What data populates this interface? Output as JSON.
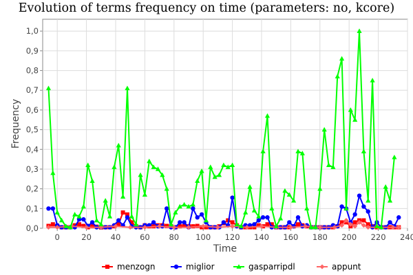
{
  "chart_data": {
    "type": "line",
    "title": "Evolution of terms frequency on time (parameters: no, kcore)",
    "xlabel": "Time",
    "ylabel": "Frequency",
    "xlim": [
      -10,
      240
    ],
    "ylim": [
      0,
      1.06
    ],
    "xticks": [
      "0",
      "20",
      "40",
      "60",
      "80",
      "100",
      "120",
      "140",
      "160",
      "180",
      "200",
      "220",
      "240"
    ],
    "yticks": [
      "0,0",
      "0,1",
      "0,2",
      "0,3",
      "0,4",
      "0,5",
      "0,6",
      "0,7",
      "0,8",
      "0,9",
      "1,0"
    ],
    "grid": true,
    "legend_position": "bottom",
    "series": [
      {
        "name": "menzogn",
        "color": "#ff0000",
        "marker": "square",
        "points": [
          [
            -6,
            0.012
          ],
          [
            -3,
            0.02
          ],
          [
            0,
            0.012
          ],
          [
            3,
            0.005
          ],
          [
            6,
            0.005
          ],
          [
            9,
            0.005
          ],
          [
            12,
            0.015
          ],
          [
            15,
            0.02
          ],
          [
            18,
            0.012
          ],
          [
            21,
            0.005
          ],
          [
            24,
            0.01
          ],
          [
            27,
            0.008
          ],
          [
            30,
            0.004
          ],
          [
            33,
            0.005
          ],
          [
            36,
            0.005
          ],
          [
            39,
            0.01
          ],
          [
            42,
            0.02
          ],
          [
            45,
            0.08
          ],
          [
            48,
            0.07
          ],
          [
            51,
            0.03
          ],
          [
            54,
            0.01
          ],
          [
            57,
            0.005
          ],
          [
            60,
            0.015
          ],
          [
            63,
            0.01
          ],
          [
            66,
            0.01
          ],
          [
            69,
            0.015
          ],
          [
            72,
            0.015
          ],
          [
            75,
            0.012
          ],
          [
            78,
            0.01
          ],
          [
            81,
            0.005
          ],
          [
            84,
            0.01
          ],
          [
            87,
            0.012
          ],
          [
            90,
            0.01
          ],
          [
            93,
            0.01
          ],
          [
            96,
            0.012
          ],
          [
            99,
            0.005
          ],
          [
            102,
            0.005
          ],
          [
            105,
            0.005
          ],
          [
            108,
            0.005
          ],
          [
            111,
            0.01
          ],
          [
            114,
            0.025
          ],
          [
            117,
            0.04
          ],
          [
            120,
            0.03
          ],
          [
            123,
            0.015
          ],
          [
            126,
            0.005
          ],
          [
            129,
            0.005
          ],
          [
            132,
            0.005
          ],
          [
            135,
            0.005
          ],
          [
            138,
            0.015
          ],
          [
            141,
            0.01
          ],
          [
            144,
            0.02
          ],
          [
            147,
            0.02
          ],
          [
            150,
            0.005
          ],
          [
            153,
            0.005
          ],
          [
            156,
            0.005
          ],
          [
            159,
            0.005
          ],
          [
            162,
            0.01
          ],
          [
            165,
            0.02
          ],
          [
            168,
            0.015
          ],
          [
            171,
            0.01
          ],
          [
            174,
            0.005
          ],
          [
            177,
            0.005
          ],
          [
            180,
            0.005
          ],
          [
            183,
            0.005
          ],
          [
            186,
            0.005
          ],
          [
            189,
            0.005
          ],
          [
            192,
            0.01
          ],
          [
            195,
            0.03
          ],
          [
            198,
            0.03
          ],
          [
            201,
            0.01
          ],
          [
            204,
            0.03
          ],
          [
            207,
            0.04
          ],
          [
            210,
            0.04
          ],
          [
            213,
            0.02
          ],
          [
            216,
            0.01
          ],
          [
            219,
            0.005
          ],
          [
            222,
            0.005
          ],
          [
            225,
            0.005
          ],
          [
            228,
            0.005
          ],
          [
            231,
            0.005
          ],
          [
            234,
            0.005
          ]
        ]
      },
      {
        "name": "miglior",
        "color": "#0000ff",
        "marker": "circle",
        "points": [
          [
            -6,
            0.1
          ],
          [
            -3,
            0.1
          ],
          [
            0,
            0.015
          ],
          [
            3,
            0.005
          ],
          [
            6,
            0.005
          ],
          [
            9,
            0.005
          ],
          [
            12,
            0.005
          ],
          [
            15,
            0.045
          ],
          [
            18,
            0.045
          ],
          [
            21,
            0.012
          ],
          [
            24,
            0.03
          ],
          [
            27,
            0.005
          ],
          [
            30,
            0.005
          ],
          [
            33,
            0.005
          ],
          [
            36,
            0.005
          ],
          [
            39,
            0.015
          ],
          [
            42,
            0.04
          ],
          [
            45,
            0.015
          ],
          [
            48,
            0.055
          ],
          [
            51,
            0.01
          ],
          [
            54,
            0.005
          ],
          [
            57,
            0.005
          ],
          [
            60,
            0.015
          ],
          [
            63,
            0.015
          ],
          [
            66,
            0.03
          ],
          [
            69,
            0.01
          ],
          [
            72,
            0.01
          ],
          [
            75,
            0.1
          ],
          [
            78,
            0.005
          ],
          [
            81,
            0.005
          ],
          [
            84,
            0.03
          ],
          [
            87,
            0.03
          ],
          [
            90,
            0.005
          ],
          [
            93,
            0.1
          ],
          [
            96,
            0.055
          ],
          [
            99,
            0.07
          ],
          [
            102,
            0.03
          ],
          [
            105,
            0.005
          ],
          [
            108,
            0.005
          ],
          [
            111,
            0.005
          ],
          [
            114,
            0.03
          ],
          [
            117,
            0.015
          ],
          [
            120,
            0.155
          ],
          [
            123,
            0.01
          ],
          [
            126,
            0.005
          ],
          [
            129,
            0.015
          ],
          [
            132,
            0.015
          ],
          [
            135,
            0.02
          ],
          [
            138,
            0.04
          ],
          [
            141,
            0.055
          ],
          [
            144,
            0.055
          ],
          [
            147,
            0.005
          ],
          [
            150,
            0.005
          ],
          [
            153,
            0.005
          ],
          [
            156,
            0.005
          ],
          [
            159,
            0.03
          ],
          [
            162,
            0.01
          ],
          [
            165,
            0.055
          ],
          [
            168,
            0.01
          ],
          [
            171,
            0.015
          ],
          [
            174,
            0.005
          ],
          [
            177,
            0.005
          ],
          [
            180,
            0.005
          ],
          [
            183,
            0.005
          ],
          [
            186,
            0.005
          ],
          [
            189,
            0.015
          ],
          [
            192,
            0.01
          ],
          [
            195,
            0.11
          ],
          [
            198,
            0.1
          ],
          [
            201,
            0.03
          ],
          [
            204,
            0.07
          ],
          [
            207,
            0.165
          ],
          [
            210,
            0.11
          ],
          [
            213,
            0.085
          ],
          [
            216,
            0.005
          ],
          [
            219,
            0.03
          ],
          [
            222,
            0.005
          ],
          [
            225,
            0.005
          ],
          [
            228,
            0.03
          ],
          [
            231,
            0.01
          ],
          [
            234,
            0.055
          ]
        ]
      },
      {
        "name": "gasparripdl",
        "color": "#00ff00",
        "marker": "triangle",
        "points": [
          [
            -6,
            0.71
          ],
          [
            -3,
            0.28
          ],
          [
            0,
            0.08
          ],
          [
            3,
            0.04
          ],
          [
            6,
            0.01
          ],
          [
            9,
            0.005
          ],
          [
            12,
            0.07
          ],
          [
            15,
            0.06
          ],
          [
            18,
            0.11
          ],
          [
            21,
            0.32
          ],
          [
            24,
            0.24
          ],
          [
            27,
            0.04
          ],
          [
            30,
            0.02
          ],
          [
            33,
            0.14
          ],
          [
            36,
            0.06
          ],
          [
            39,
            0.31
          ],
          [
            42,
            0.42
          ],
          [
            45,
            0.16
          ],
          [
            48,
            0.71
          ],
          [
            51,
            0.06
          ],
          [
            54,
            0.02
          ],
          [
            57,
            0.27
          ],
          [
            60,
            0.17
          ],
          [
            63,
            0.34
          ],
          [
            66,
            0.31
          ],
          [
            69,
            0.3
          ],
          [
            72,
            0.27
          ],
          [
            75,
            0.2
          ],
          [
            78,
            0.02
          ],
          [
            81,
            0.08
          ],
          [
            84,
            0.11
          ],
          [
            87,
            0.12
          ],
          [
            90,
            0.11
          ],
          [
            93,
            0.12
          ],
          [
            96,
            0.24
          ],
          [
            99,
            0.29
          ],
          [
            102,
            0.04
          ],
          [
            105,
            0.31
          ],
          [
            108,
            0.26
          ],
          [
            111,
            0.27
          ],
          [
            114,
            0.32
          ],
          [
            117,
            0.31
          ],
          [
            120,
            0.32
          ],
          [
            123,
            0.02
          ],
          [
            126,
            0.01
          ],
          [
            129,
            0.08
          ],
          [
            132,
            0.21
          ],
          [
            135,
            0.09
          ],
          [
            138,
            0.06
          ],
          [
            141,
            0.39
          ],
          [
            144,
            0.57
          ],
          [
            147,
            0.1
          ],
          [
            150,
            0.01
          ],
          [
            153,
            0.05
          ],
          [
            156,
            0.19
          ],
          [
            159,
            0.17
          ],
          [
            162,
            0.14
          ],
          [
            165,
            0.39
          ],
          [
            168,
            0.38
          ],
          [
            171,
            0.1
          ],
          [
            174,
            0.005
          ],
          [
            177,
            0.005
          ],
          [
            180,
            0.2
          ],
          [
            183,
            0.5
          ],
          [
            186,
            0.32
          ],
          [
            189,
            0.31
          ],
          [
            192,
            0.77
          ],
          [
            195,
            0.86
          ],
          [
            198,
            0.1
          ],
          [
            201,
            0.6
          ],
          [
            204,
            0.55
          ],
          [
            207,
            1.0
          ],
          [
            210,
            0.39
          ],
          [
            213,
            0.14
          ],
          [
            216,
            0.75
          ],
          [
            219,
            0.01
          ],
          [
            222,
            0.005
          ],
          [
            225,
            0.21
          ],
          [
            228,
            0.14
          ],
          [
            231,
            0.36
          ]
        ]
      },
      {
        "name": "appunt",
        "color": "#ff6666",
        "marker": "diamond",
        "points": [
          [
            -6,
            0.005
          ],
          [
            0,
            0.005
          ],
          [
            10,
            0.01
          ],
          [
            20,
            0.005
          ],
          [
            30,
            0.005
          ],
          [
            40,
            0.01
          ],
          [
            50,
            0.005
          ],
          [
            60,
            0.005
          ],
          [
            70,
            0.01
          ],
          [
            80,
            0.005
          ],
          [
            90,
            0.005
          ],
          [
            100,
            0.01
          ],
          [
            110,
            0.005
          ],
          [
            120,
            0.01
          ],
          [
            130,
            0.005
          ],
          [
            140,
            0.01
          ],
          [
            150,
            0.005
          ],
          [
            160,
            0.005
          ],
          [
            170,
            0.01
          ],
          [
            180,
            0.005
          ],
          [
            190,
            0.005
          ],
          [
            195,
            0.015
          ],
          [
            198,
            0.04
          ],
          [
            201,
            0.02
          ],
          [
            204,
            0.01
          ],
          [
            207,
            0.03
          ],
          [
            210,
            0.015
          ],
          [
            213,
            0.005
          ],
          [
            220,
            0.005
          ],
          [
            230,
            0.005
          ],
          [
            234,
            0.005
          ]
        ]
      }
    ]
  }
}
